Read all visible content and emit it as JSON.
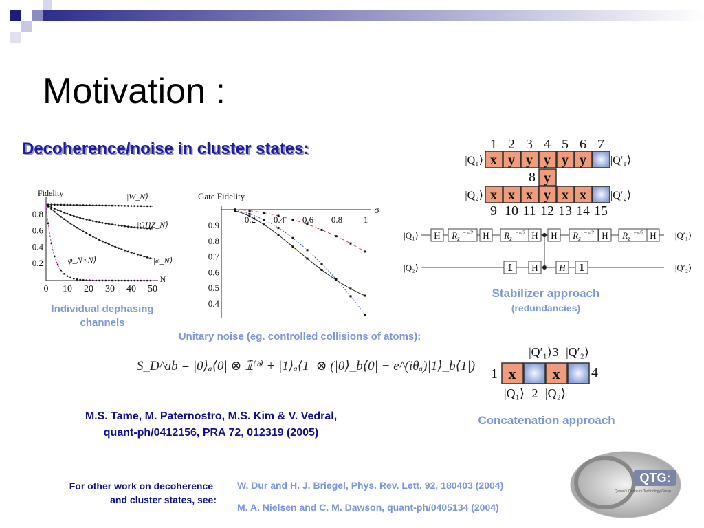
{
  "title": "Motivation :",
  "subtitle": "Decoherence/noise in cluster states:",
  "figure_dephasing": {
    "ylabel": "Fidelity",
    "xlabel": "N",
    "xticks": [
      "0",
      "10",
      "20",
      "30",
      "40",
      "50"
    ],
    "yticks": [
      "0.8",
      "0.6",
      "0.4",
      "0.2"
    ],
    "curve_labels": [
      "|W_N⟩",
      "|GHZ_N⟩",
      "|φ_N×N⟩",
      "|φ_N⟩"
    ],
    "caption": [
      "Individual dephasing",
      "channels"
    ]
  },
  "figure_gate": {
    "ylabel": "Gate Fidelity",
    "xlabel": "σ",
    "xticks": [
      "0.2",
      "0.4",
      "0.6",
      "0.8",
      "1"
    ],
    "yticks": [
      "0.9",
      "0.8",
      "0.7",
      "0.6",
      "0.5",
      "0.4"
    ]
  },
  "cluster": {
    "top_numbers": [
      "1",
      "2",
      "3",
      "4",
      "5",
      "6",
      "7"
    ],
    "row1_in": "|Q₁⟩",
    "row1_cells": [
      "x",
      "y",
      "y",
      "y",
      "y",
      "y"
    ],
    "row1_out": "|Q′₁⟩",
    "mid_number": "8",
    "mid_cell": "y",
    "row2_in": "|Q₂⟩",
    "row2_cells": [
      "x",
      "x",
      "x",
      "y",
      "x",
      "x"
    ],
    "row2_out": "|Q′₂⟩",
    "bottom_numbers": [
      "9",
      "10",
      "11",
      "12",
      "13",
      "14",
      "15"
    ]
  },
  "circuit": {
    "q1_in": "|Q₁⟩",
    "q1_out": "|Q′₁⟩",
    "q2_in": "|Q₂⟩",
    "q2_out": "|Q′₂⟩",
    "q1_gates": [
      {
        "label": "H"
      },
      {
        "label": "R",
        "sub": "z",
        "sup": "−π/2"
      },
      {
        "label": "H"
      },
      {
        "label": "R",
        "sub": "z",
        "sup": "−π/2"
      },
      {
        "label": "H"
      },
      {
        "label": "H"
      },
      {
        "label": "R",
        "sub": "z",
        "sup": "−π/2"
      },
      {
        "label": "H"
      },
      {
        "label": "R",
        "sub": "z",
        "sup": "−π/2"
      },
      {
        "label": "H"
      }
    ],
    "q2_gates": [
      {
        "label": "𝟙"
      },
      {
        "label": "H"
      },
      {
        "label": "H"
      },
      {
        "label": "𝟙"
      }
    ]
  },
  "stabilizer_caption": "Stabilizer approach",
  "stabilizer_note": "(redundancies)",
  "unitary_noise": "Unitary noise (eg. controlled collisions of atoms):",
  "equation": "S_D^ab = |0⟩ₐ⟨0| ⊗ 𝟙⁽ᵇ⁾ + |1⟩ₐ⟨1| ⊗ (|0⟩_b⟨0| − e^(iθₐ)|1⟩_b⟨1|)",
  "concatenation": {
    "top_labels": [
      "|Q′₁⟩",
      "3",
      "|Q′₂⟩"
    ],
    "left": "1",
    "right": "4",
    "cells": [
      "x",
      "x"
    ],
    "bottom_labels": [
      "|Q₁⟩",
      "2",
      "|Q₂⟩"
    ],
    "caption": "Concatenation approach"
  },
  "reference": [
    "M.S. Tame, M. Paternostro, M.S. Kim & V. Vedral,",
    "quant-ph/0412156, PRA 72, 012319 (2005)"
  ],
  "other_work": [
    "For other work on decoherence",
    "and cluster states, see:"
  ],
  "other_refs": [
    "W. Dur and H. J. Briegel, Phys. Rev. Lett. 92, 180403 (2004)",
    "M. A. Nielsen and C. M. Dawson, quant-ph/0405134 (2004)"
  ],
  "logo": {
    "name": "QTG:",
    "subtitle": "Queen's Quantum Technology Group"
  }
}
